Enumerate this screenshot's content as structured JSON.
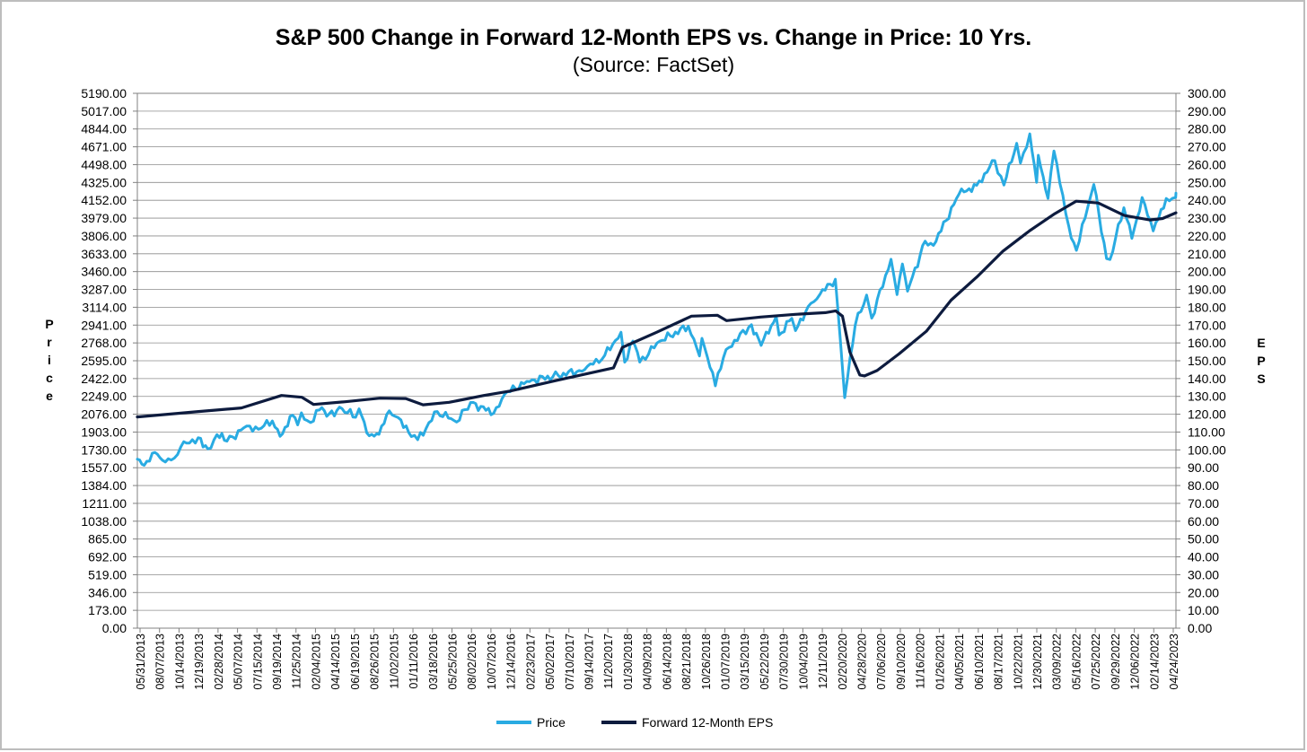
{
  "chart_data": {
    "type": "line",
    "title": "S&P 500 Change in Forward 12-Month EPS vs. Change in Price: 10 Yrs.",
    "subtitle": "(Source: FactSet)",
    "ylabel": "Price",
    "y2label": "EPS",
    "ylim": [
      0,
      5190
    ],
    "y2lim": [
      0,
      300
    ],
    "yticks": [
      "0.00",
      "173.00",
      "346.00",
      "519.00",
      "692.00",
      "865.00",
      "1038.00",
      "1211.00",
      "1384.00",
      "1557.00",
      "1730.00",
      "1903.00",
      "2076.00",
      "2249.00",
      "2422.00",
      "2595.00",
      "2768.00",
      "2941.00",
      "3114.00",
      "3287.00",
      "3460.00",
      "3633.00",
      "3806.00",
      "3979.00",
      "4152.00",
      "4325.00",
      "4498.00",
      "4671.00",
      "4844.00",
      "5017.00",
      "5190.00"
    ],
    "y2ticks": [
      "0.00",
      "10.00",
      "20.00",
      "30.00",
      "40.00",
      "50.00",
      "60.00",
      "70.00",
      "80.00",
      "90.00",
      "100.00",
      "110.00",
      "120.00",
      "130.00",
      "140.00",
      "150.00",
      "160.00",
      "170.00",
      "180.00",
      "190.00",
      "200.00",
      "210.00",
      "220.00",
      "230.00",
      "240.00",
      "250.00",
      "260.00",
      "270.00",
      "280.00",
      "290.00",
      "300.00"
    ],
    "xticks": [
      "05/31/2013",
      "08/07/2013",
      "10/14/2013",
      "12/19/2013",
      "02/28/2014",
      "05/07/2014",
      "07/15/2014",
      "09/19/2014",
      "11/25/2014",
      "02/04/2015",
      "04/14/2015",
      "06/19/2015",
      "08/26/2015",
      "11/02/2015",
      "01/11/2016",
      "03/18/2016",
      "05/25/2016",
      "08/02/2016",
      "10/07/2016",
      "12/14/2016",
      "02/23/2017",
      "05/02/2017",
      "07/10/2017",
      "09/14/2017",
      "11/20/2017",
      "01/30/2018",
      "04/09/2018",
      "06/14/2018",
      "08/21/2018",
      "10/26/2018",
      "01/07/2019",
      "03/15/2019",
      "05/22/2019",
      "07/30/2019",
      "10/04/2019",
      "12/11/2019",
      "02/20/2020",
      "04/28/2020",
      "07/06/2020",
      "09/10/2020",
      "11/16/2020",
      "01/26/2021",
      "04/05/2021",
      "06/10/2021",
      "08/17/2021",
      "10/22/2021",
      "12/30/2021",
      "03/09/2022",
      "05/16/2022",
      "07/25/2022",
      "09/29/2022",
      "12/06/2022",
      "02/14/2023",
      "04/24/2023"
    ],
    "x_range": [
      "2013-05-31",
      "2023-06-01"
    ],
    "grid": true,
    "legend_position": "bottom",
    "series": [
      {
        "name": "Price",
        "axis": "left",
        "color": "#29abe2",
        "points": [
          [
            "2013-05-31",
            1640
          ],
          [
            "2013-06-24",
            1580
          ],
          [
            "2013-08-01",
            1705
          ],
          [
            "2013-08-27",
            1630
          ],
          [
            "2013-10-08",
            1650
          ],
          [
            "2013-10-31",
            1760
          ],
          [
            "2013-12-31",
            1848
          ],
          [
            "2014-02-03",
            1740
          ],
          [
            "2014-03-07",
            1878
          ],
          [
            "2014-04-11",
            1815
          ],
          [
            "2014-06-20",
            1962
          ],
          [
            "2014-07-31",
            1930
          ],
          [
            "2014-09-18",
            2011
          ],
          [
            "2014-10-15",
            1862
          ],
          [
            "2014-11-28",
            2067
          ],
          [
            "2014-12-16",
            1972
          ],
          [
            "2014-12-29",
            2090
          ],
          [
            "2015-01-30",
            1995
          ],
          [
            "2015-03-02",
            2117
          ],
          [
            "2015-04-06",
            2080
          ],
          [
            "2015-05-21",
            2131
          ],
          [
            "2015-07-08",
            2046
          ],
          [
            "2015-07-20",
            2128
          ],
          [
            "2015-08-25",
            1867
          ],
          [
            "2015-09-28",
            1881
          ],
          [
            "2015-11-03",
            2109
          ],
          [
            "2015-12-14",
            2021
          ],
          [
            "2016-01-20",
            1859
          ],
          [
            "2016-02-11",
            1829
          ],
          [
            "2016-04-20",
            2102
          ],
          [
            "2016-06-27",
            2000
          ],
          [
            "2016-08-15",
            2190
          ],
          [
            "2016-11-04",
            2085
          ],
          [
            "2016-12-13",
            2271
          ],
          [
            "2017-03-01",
            2395
          ],
          [
            "2017-06-19",
            2453
          ],
          [
            "2017-09-20",
            2508
          ],
          [
            "2017-11-30",
            2647
          ],
          [
            "2018-01-26",
            2872
          ],
          [
            "2018-02-08",
            2581
          ],
          [
            "2018-03-09",
            2786
          ],
          [
            "2018-04-02",
            2582
          ],
          [
            "2018-06-12",
            2786
          ],
          [
            "2018-09-20",
            2930
          ],
          [
            "2018-10-29",
            2641
          ],
          [
            "2018-11-07",
            2813
          ],
          [
            "2018-12-24",
            2351
          ],
          [
            "2019-01-31",
            2704
          ],
          [
            "2019-04-30",
            2945
          ],
          [
            "2019-06-03",
            2744
          ],
          [
            "2019-07-26",
            3025
          ],
          [
            "2019-08-05",
            2844
          ],
          [
            "2019-09-19",
            3006
          ],
          [
            "2019-10-02",
            2888
          ],
          [
            "2019-11-15",
            3120
          ],
          [
            "2019-12-27",
            3240
          ],
          [
            "2020-02-19",
            3386
          ],
          [
            "2020-03-09",
            2746
          ],
          [
            "2020-03-23",
            2237
          ],
          [
            "2020-04-29",
            2939
          ],
          [
            "2020-06-08",
            3232
          ],
          [
            "2020-06-26",
            3009
          ],
          [
            "2020-09-02",
            3580
          ],
          [
            "2020-09-23",
            3237
          ],
          [
            "2020-10-12",
            3534
          ],
          [
            "2020-10-30",
            3270
          ],
          [
            "2020-12-31",
            3756
          ],
          [
            "2021-01-29",
            3714
          ],
          [
            "2021-04-29",
            4211
          ],
          [
            "2021-06-30",
            4297
          ],
          [
            "2021-09-02",
            4537
          ],
          [
            "2021-10-04",
            4300
          ],
          [
            "2021-11-18",
            4705
          ],
          [
            "2021-12-01",
            4513
          ],
          [
            "2022-01-03",
            4796
          ],
          [
            "2022-01-27",
            4326
          ],
          [
            "2022-02-02",
            4589
          ],
          [
            "2022-03-08",
            4170
          ],
          [
            "2022-03-29",
            4631
          ],
          [
            "2022-05-20",
            3901
          ],
          [
            "2022-06-16",
            3666
          ],
          [
            "2022-08-16",
            4305
          ],
          [
            "2022-09-30",
            3586
          ],
          [
            "2022-10-12",
            3577
          ],
          [
            "2022-11-30",
            4080
          ],
          [
            "2022-12-28",
            3783
          ],
          [
            "2023-02-02",
            4179
          ],
          [
            "2023-03-13",
            3855
          ],
          [
            "2023-04-28",
            4169
          ],
          [
            "2023-05-31",
            4180
          ],
          [
            "2023-06-01",
            4221
          ]
        ]
      },
      {
        "name": "Forward 12-Month EPS",
        "axis": "right",
        "color": "#0d1b3e",
        "points": [
          [
            "2013-05-31",
            118.5
          ],
          [
            "2014-01-01",
            121.5
          ],
          [
            "2014-06-01",
            123.5
          ],
          [
            "2014-10-20",
            130.5
          ],
          [
            "2014-12-31",
            129.5
          ],
          [
            "2015-02-10",
            125.5
          ],
          [
            "2015-06-01",
            127.0
          ],
          [
            "2015-10-01",
            129.0
          ],
          [
            "2015-12-31",
            128.8
          ],
          [
            "2016-03-01",
            125.3
          ],
          [
            "2016-06-01",
            126.7
          ],
          [
            "2016-10-01",
            130.5
          ],
          [
            "2017-01-01",
            133.0
          ],
          [
            "2017-06-01",
            138.5
          ],
          [
            "2017-12-31",
            146.0
          ],
          [
            "2018-01-31",
            157.5
          ],
          [
            "2018-03-01",
            159.5
          ],
          [
            "2018-06-01",
            166.0
          ],
          [
            "2018-10-01",
            175.0
          ],
          [
            "2018-12-31",
            175.5
          ],
          [
            "2019-02-01",
            172.5
          ],
          [
            "2019-06-01",
            174.5
          ],
          [
            "2019-10-01",
            176.0
          ],
          [
            "2020-01-15",
            177.0
          ],
          [
            "2020-02-20",
            178.0
          ],
          [
            "2020-03-15",
            175.0
          ],
          [
            "2020-04-10",
            155.0
          ],
          [
            "2020-05-15",
            142.0
          ],
          [
            "2020-06-01",
            141.5
          ],
          [
            "2020-07-15",
            144.5
          ],
          [
            "2020-10-01",
            154.0
          ],
          [
            "2021-01-04",
            166.5
          ],
          [
            "2021-04-01",
            184.0
          ],
          [
            "2021-07-01",
            197.0
          ],
          [
            "2021-10-01",
            211.5
          ],
          [
            "2022-01-03",
            223.0
          ],
          [
            "2022-04-01",
            232.5
          ],
          [
            "2022-06-15",
            239.5
          ],
          [
            "2022-09-01",
            238.5
          ],
          [
            "2022-12-01",
            231.5
          ],
          [
            "2023-03-01",
            229.0
          ],
          [
            "2023-04-15",
            229.8
          ],
          [
            "2023-06-01",
            233.0
          ]
        ]
      }
    ]
  }
}
